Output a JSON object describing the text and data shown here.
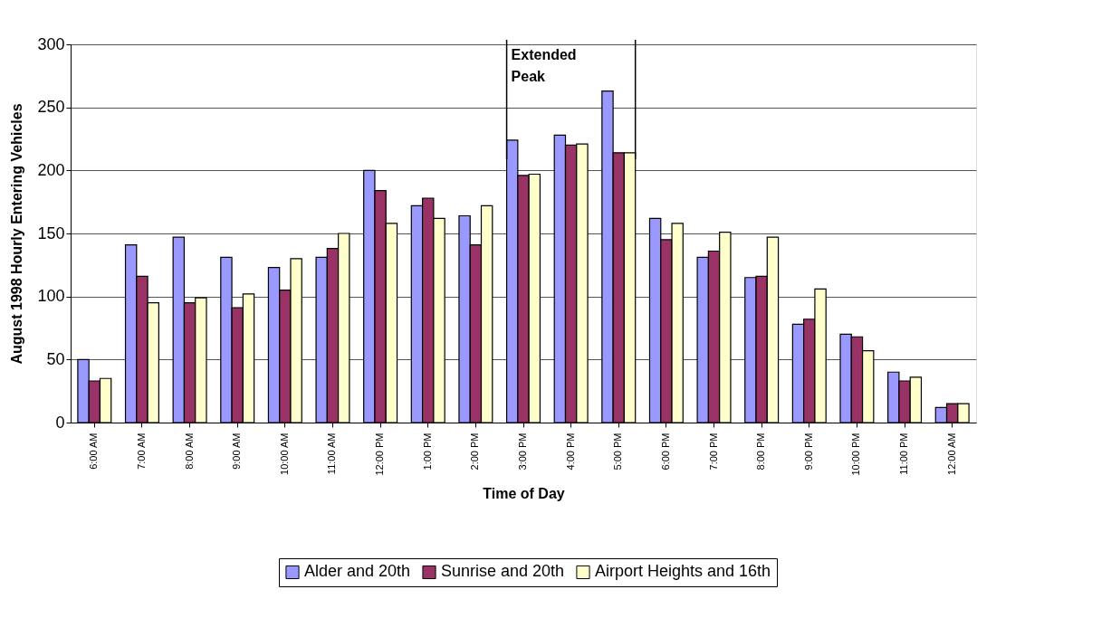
{
  "chart_data": {
    "type": "bar",
    "xlabel": "Time of Day",
    "ylabel": "August 1998 Hourly Entering Vehicles",
    "categories": [
      "6:00 AM",
      "7:00 AM",
      "8:00 AM",
      "9:00 AM",
      "10:00 AM",
      "11:00 AM",
      "12:00 PM",
      "1:00 PM",
      "2:00 PM",
      "3:00 PM",
      "4:00 PM",
      "5:00 PM",
      "6:00 PM",
      "7:00 PM",
      "8:00 PM",
      "9:00 PM",
      "10:00 PM",
      "11:00 PM",
      "12:00 AM"
    ],
    "series": [
      {
        "name": "Alder and 20th",
        "color": "#9999ff",
        "values": [
          50,
          141,
          147,
          131,
          123,
          131,
          200,
          172,
          164,
          224,
          228,
          263,
          162,
          131,
          115,
          78,
          70,
          40,
          12
        ]
      },
      {
        "name": "Sunrise and 20th",
        "color": "#993366",
        "values": [
          33,
          116,
          95,
          91,
          105,
          138,
          184,
          178,
          141,
          196,
          220,
          214,
          145,
          136,
          116,
          82,
          68,
          33,
          15
        ]
      },
      {
        "name": "Airport Heights and 16th",
        "color": "#ffffcc",
        "values": [
          35,
          95,
          99,
          102,
          130,
          150,
          158,
          162,
          172,
          197,
          221,
          214,
          158,
          151,
          147,
          106,
          57,
          36,
          15
        ]
      }
    ],
    "ylim": [
      0,
      300
    ],
    "yticks": [
      0,
      50,
      100,
      150,
      200,
      250,
      300
    ],
    "grid": "y",
    "legend": "bottom",
    "ref_lines": [
      {
        "axis": "x",
        "value": "3:00 PM",
        "label": "Extended Peak"
      },
      {
        "axis": "x",
        "value": "5:00 PM"
      }
    ]
  }
}
